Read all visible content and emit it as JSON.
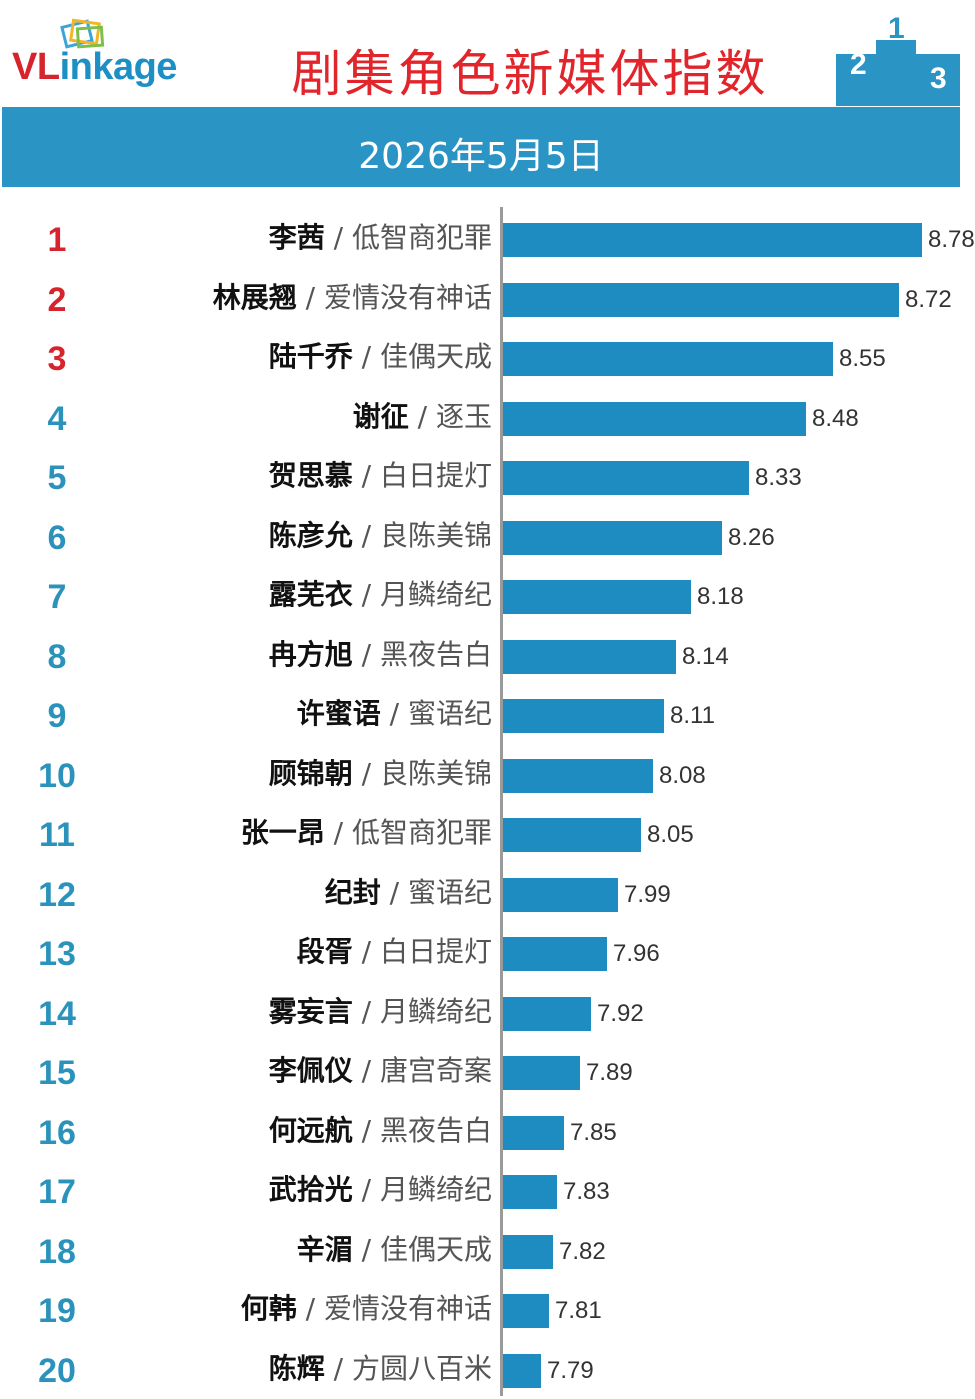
{
  "header": {
    "logo_text_prefix": "VL",
    "logo_text_suffix": "inkage",
    "title": "剧集角色新媒体指数",
    "podium_labels": [
      "2",
      "1",
      "3"
    ]
  },
  "date_band": {
    "date": "2026年5月5日"
  },
  "colors": {
    "title_red": "#e2242b",
    "band_blue": "#2a94c5",
    "bar_blue": "#1e8cc0",
    "rank_top3_red": "#d7232b",
    "rank_other_teal": "#2b93bb"
  },
  "chart_data": {
    "type": "bar",
    "orientation": "horizontal",
    "separator": "/",
    "categories": [
      {
        "rank": "1",
        "name": "李茜",
        "drama": "低智商犯罪"
      },
      {
        "rank": "2",
        "name": "林展翘",
        "drama": "爱情没有神话"
      },
      {
        "rank": "3",
        "name": "陆千乔",
        "drama": "佳偶天成"
      },
      {
        "rank": "4",
        "name": "谢征",
        "drama": "逐玉"
      },
      {
        "rank": "5",
        "name": "贺思慕",
        "drama": "白日提灯"
      },
      {
        "rank": "6",
        "name": "陈彦允",
        "drama": "良陈美锦"
      },
      {
        "rank": "7",
        "name": "露芜衣",
        "drama": "月鳞绮纪"
      },
      {
        "rank": "8",
        "name": "冉方旭",
        "drama": "黑夜告白"
      },
      {
        "rank": "9",
        "name": "许蜜语",
        "drama": "蜜语纪"
      },
      {
        "rank": "10",
        "name": "顾锦朝",
        "drama": "良陈美锦"
      },
      {
        "rank": "11",
        "name": "张一昂",
        "drama": "低智商犯罪"
      },
      {
        "rank": "12",
        "name": "纪封",
        "drama": "蜜语纪"
      },
      {
        "rank": "13",
        "name": "段胥",
        "drama": "白日提灯"
      },
      {
        "rank": "14",
        "name": "雾妄言",
        "drama": "月鳞绮纪"
      },
      {
        "rank": "15",
        "name": "李佩仪",
        "drama": "唐宫奇案"
      },
      {
        "rank": "16",
        "name": "何远航",
        "drama": "黑夜告白"
      },
      {
        "rank": "17",
        "name": "武拾光",
        "drama": "月鳞绮纪"
      },
      {
        "rank": "18",
        "name": "辛湄",
        "drama": "佳偶天成"
      },
      {
        "rank": "19",
        "name": "何韩",
        "drama": "爱情没有神话"
      },
      {
        "rank": "20",
        "name": "陈辉",
        "drama": "方圆八百米"
      }
    ],
    "values": [
      8.78,
      8.72,
      8.55,
      8.48,
      8.33,
      8.26,
      8.18,
      8.14,
      8.11,
      8.08,
      8.05,
      7.99,
      7.96,
      7.92,
      7.89,
      7.85,
      7.83,
      7.82,
      7.81,
      7.79
    ],
    "value_labels": [
      "8.78",
      "8.72",
      "8.55",
      "8.48",
      "8.33",
      "8.26",
      "8.18",
      "8.14",
      "8.11",
      "8.08",
      "8.05",
      "7.99",
      "7.96",
      "7.92",
      "7.89",
      "7.85",
      "7.83",
      "7.82",
      "7.81",
      "7.79"
    ],
    "xlim": [
      7.69,
      8.84
    ],
    "grid": false,
    "legend": "none"
  }
}
